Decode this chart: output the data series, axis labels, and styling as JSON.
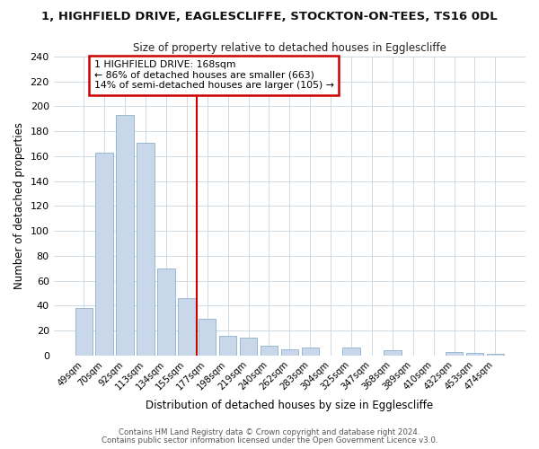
{
  "title1": "1, HIGHFIELD DRIVE, EAGLESCLIFFE, STOCKTON-ON-TEES, TS16 0DL",
  "title2": "Size of property relative to detached houses in Egglescliffe",
  "xlabel": "Distribution of detached houses by size in Egglescliffe",
  "ylabel": "Number of detached properties",
  "bar_labels": [
    "49sqm",
    "70sqm",
    "92sqm",
    "113sqm",
    "134sqm",
    "155sqm",
    "177sqm",
    "198sqm",
    "219sqm",
    "240sqm",
    "262sqm",
    "283sqm",
    "304sqm",
    "325sqm",
    "347sqm",
    "368sqm",
    "389sqm",
    "410sqm",
    "432sqm",
    "453sqm",
    "474sqm"
  ],
  "bar_values": [
    38,
    163,
    193,
    171,
    70,
    46,
    29,
    16,
    14,
    8,
    5,
    6,
    0,
    6,
    0,
    4,
    0,
    0,
    3,
    2,
    1
  ],
  "bar_color": "#c8d8ea",
  "bar_edge_color": "#8fb0cc",
  "red_line_color": "#cc0000",
  "ylim": [
    0,
    240
  ],
  "yticks": [
    0,
    20,
    40,
    60,
    80,
    100,
    120,
    140,
    160,
    180,
    200,
    220,
    240
  ],
  "annotation_title": "1 HIGHFIELD DRIVE: 168sqm",
  "annotation_line1": "← 86% of detached houses are smaller (663)",
  "annotation_line2": "14% of semi-detached houses are larger (105) →",
  "annotation_box_edge": "#cc0000",
  "footer1": "Contains HM Land Registry data © Crown copyright and database right 2024.",
  "footer2": "Contains public sector information licensed under the Open Government Licence v3.0.",
  "bg_color": "#ffffff",
  "grid_color": "#c8d4de"
}
